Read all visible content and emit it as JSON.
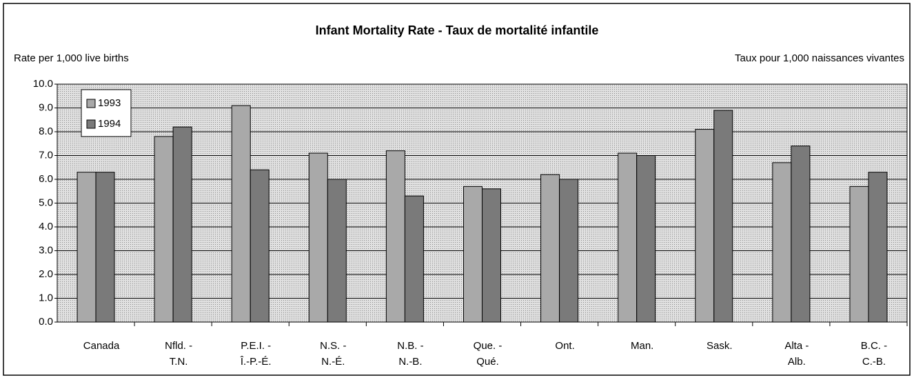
{
  "chart_data": {
    "type": "bar",
    "title": "Infant Mortality Rate - Taux de mortalité infantile",
    "y_label_left": "Rate per 1,000 live births",
    "y_label_right": "Taux pour 1,000 naissances vivantes",
    "categories": [
      "Canada",
      "Nfld. -\nT.N.",
      "P.E.I. -\nÎ.-P.-É.",
      "N.S. -\nN.-É.",
      "N.B. -\nN.-B.",
      "Que. -\nQué.",
      "Ont.",
      "Man.",
      "Sask.",
      "Alta -\nAlb.",
      "B.C. -\nC.-B."
    ],
    "series": [
      {
        "name": "1993",
        "color": "#a9a9a9",
        "values": [
          6.3,
          7.8,
          9.1,
          7.1,
          7.2,
          5.7,
          6.2,
          7.1,
          8.1,
          6.7,
          5.7
        ]
      },
      {
        "name": "1994",
        "color": "#7a7a7a",
        "values": [
          6.3,
          8.2,
          6.4,
          6.0,
          5.3,
          5.6,
          6.0,
          7.0,
          8.9,
          7.4,
          6.3
        ]
      }
    ],
    "ylim": [
      0,
      10
    ],
    "yticks": [
      {
        "value": 0,
        "label": "0.0"
      },
      {
        "value": 1,
        "label": "1.0"
      },
      {
        "value": 2,
        "label": "2.0"
      },
      {
        "value": 3,
        "label": "3.0"
      },
      {
        "value": 4,
        "label": "4.0"
      },
      {
        "value": 5,
        "label": "5.0"
      },
      {
        "value": 6,
        "label": "6.0"
      },
      {
        "value": 7,
        "label": "7.0"
      },
      {
        "value": 8,
        "label": "8.0"
      },
      {
        "value": 9,
        "label": "9.0"
      },
      {
        "value": 10,
        "label": "10.0"
      }
    ],
    "grid": true,
    "legend": "upper left"
  }
}
